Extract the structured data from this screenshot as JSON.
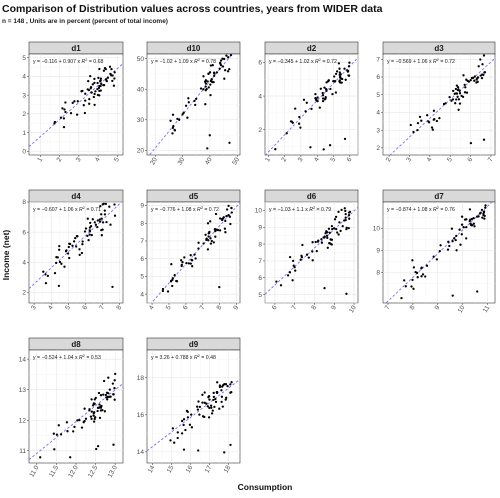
{
  "figure": {
    "title": "Comparison of Distribution values across countries, years from WIDER data",
    "subtitle": "n = 148 , Units are in percent (percent of total income)",
    "xlabel": "Consumption",
    "ylabel": "Income (net)"
  },
  "chart_data": [
    {
      "type": "scatter",
      "panel": "d1",
      "n": 70,
      "xlim": [
        0.4,
        5.3
      ],
      "ylim": [
        -0.2,
        5.2
      ],
      "xticks": [
        1,
        2,
        3,
        4,
        5
      ],
      "yticks": [
        0,
        1,
        2,
        3,
        4,
        5
      ],
      "fit": {
        "intercept": -0.116,
        "slope": 0.907
      },
      "equation": {
        "prefix": "y = −0.116 + 0.907 x",
        "r2_label": "R",
        "r2_sup": "2",
        "r2_value": " = 0.68"
      }
    },
    {
      "type": "scatter",
      "panel": "d10",
      "n": 70,
      "xlim": [
        17,
        51
      ],
      "ylim": [
        18.5,
        51.5
      ],
      "xticks": [
        20,
        30,
        40,
        50
      ],
      "yticks": [
        20,
        30,
        40,
        50
      ],
      "fit": {
        "intercept": -1.02,
        "slope": 1.09
      },
      "equation": {
        "prefix": "y = −1.02 + 1.09 x",
        "r2_label": "R",
        "r2_sup": "2",
        "r2_value": " = 0.78"
      }
    },
    {
      "type": "scatter",
      "panel": "d2",
      "n": 70,
      "xlim": [
        0.8,
        6.5
      ],
      "ylim": [
        0.5,
        6.5
      ],
      "xticks": [
        1,
        2,
        3,
        4,
        5,
        6
      ],
      "yticks": [
        2,
        4,
        6
      ],
      "fit": {
        "intercept": -0.345,
        "slope": 1.02
      },
      "equation": {
        "prefix": "y = −0.345 + 1.02 x",
        "r2_label": "R",
        "r2_sup": "2",
        "r2_value": " = 0.72"
      }
    },
    {
      "type": "scatter",
      "panel": "d3",
      "n": 70,
      "xlim": [
        1.7,
        7.2
      ],
      "ylim": [
        1.6,
        7.3
      ],
      "xticks": [
        2,
        3,
        4,
        5,
        6,
        7
      ],
      "yticks": [
        2,
        3,
        4,
        5,
        6,
        7
      ],
      "fit": {
        "intercept": -0.569,
        "slope": 1.06
      },
      "equation": {
        "prefix": "y = −0.569 + 1.06 x",
        "r2_label": "R",
        "r2_sup": "2",
        "r2_value": " = 0.72"
      }
    },
    {
      "type": "scatter",
      "panel": "d4",
      "n": 70,
      "xlim": [
        2.7,
        8.2
      ],
      "ylim": [
        1.3,
        8.0
      ],
      "xticks": [
        3,
        4,
        5,
        6,
        7,
        8
      ],
      "yticks": [
        2,
        4,
        6,
        8
      ],
      "fit": {
        "intercept": -0.607,
        "slope": 1.06
      },
      "equation": {
        "prefix": "y = −0.607 + 1.06 x",
        "r2_label": "R",
        "r2_sup": "2",
        "r2_value": " = 0.71"
      }
    },
    {
      "type": "scatter",
      "panel": "d5",
      "n": 70,
      "xlim": [
        3.7,
        9.2
      ],
      "ylim": [
        3.5,
        9.2
      ],
      "xticks": [
        4,
        5,
        6,
        7,
        8,
        9
      ],
      "yticks": [
        4,
        5,
        6,
        7,
        8,
        9
      ],
      "fit": {
        "intercept": -0.776,
        "slope": 1.08
      },
      "equation": {
        "prefix": "y = −0.776 + 1.08 x",
        "r2_label": "R",
        "r2_sup": "2",
        "r2_value": " = 0.72"
      }
    },
    {
      "type": "scatter",
      "panel": "d6",
      "n": 70,
      "xlim": [
        5.5,
        10.2
      ],
      "ylim": [
        4.5,
        10.5
      ],
      "xticks": [
        6,
        7,
        8,
        9,
        10
      ],
      "yticks": [
        5,
        6,
        7,
        8,
        9,
        10
      ],
      "fit": {
        "intercept": -1.03,
        "slope": 1.1
      },
      "equation": {
        "prefix": "y = −1.03 + 1.1 x",
        "r2_label": "R",
        "r2_sup": "2",
        "r2_value": " = 0.79"
      }
    },
    {
      "type": "scatter",
      "panel": "d7",
      "n": 70,
      "xlim": [
        6.8,
        11.3
      ],
      "ylim": [
        6.6,
        11.2
      ],
      "xticks": [
        7,
        8,
        9,
        10,
        11
      ],
      "yticks": [
        8,
        9,
        10
      ],
      "fit": {
        "intercept": -0.874,
        "slope": 1.08
      },
      "equation": {
        "prefix": "y = −0.874 + 1.08 x",
        "r2_label": "R",
        "r2_sup": "2",
        "r2_value": " = 0.76"
      }
    },
    {
      "type": "scatter",
      "panel": "d8",
      "n": 70,
      "xlim": [
        10.8,
        13.2
      ],
      "ylim": [
        10.6,
        14.3
      ],
      "xticks": [
        11.0,
        11.5,
        12.0,
        12.5,
        13.0
      ],
      "yticks": [
        11,
        12,
        13,
        14
      ],
      "fit": {
        "intercept": -0.524,
        "slope": 1.04
      },
      "equation": {
        "prefix": "y = −0.524 + 1.04 x",
        "r2_label": "R",
        "r2_sup": "2",
        "r2_value": " = 0.53"
      }
    },
    {
      "type": "scatter",
      "panel": "d9",
      "n": 70,
      "xlim": [
        13.7,
        18.6
      ],
      "ylim": [
        13.4,
        19.5
      ],
      "xticks": [
        14,
        15,
        16,
        17,
        18
      ],
      "yticks": [
        14,
        16,
        18
      ],
      "fit": {
        "intercept": 3.26,
        "slope": 0.788
      },
      "equation": {
        "prefix": "y = 3.26 + 0.788 x",
        "r2_label": "R",
        "r2_sup": "2",
        "r2_value": " = 0.48"
      }
    }
  ]
}
